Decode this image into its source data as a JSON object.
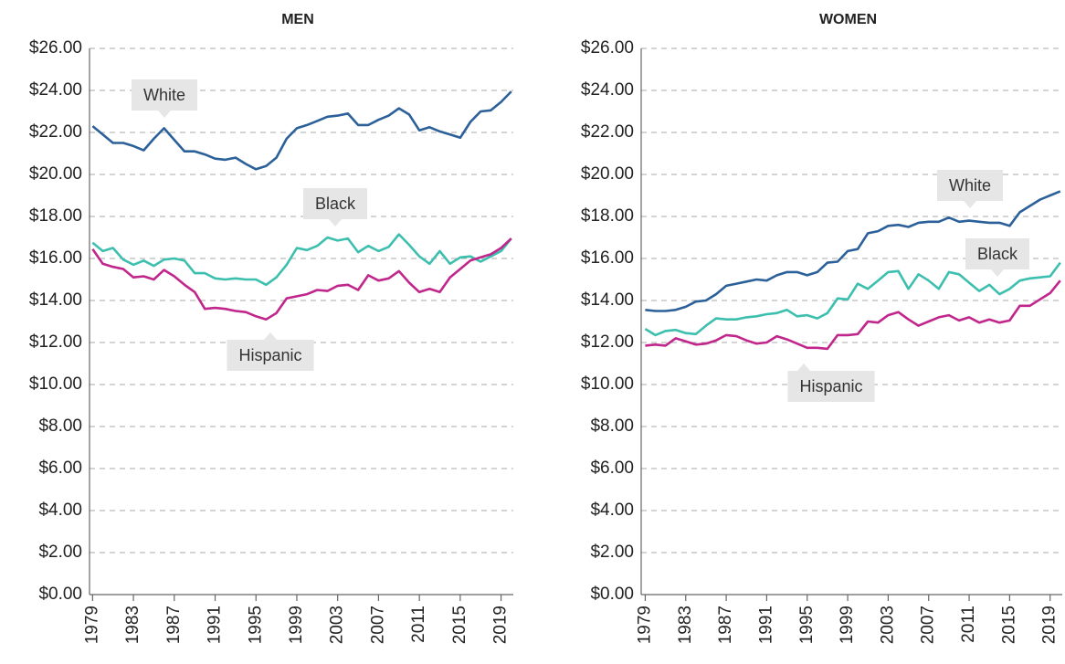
{
  "chart_data": [
    {
      "type": "line",
      "title": "MEN",
      "x": [
        1979,
        1980,
        1981,
        1982,
        1983,
        1984,
        1985,
        1986,
        1987,
        1988,
        1989,
        1990,
        1991,
        1992,
        1993,
        1994,
        1995,
        1996,
        1997,
        1998,
        1999,
        2000,
        2001,
        2002,
        2003,
        2004,
        2005,
        2006,
        2007,
        2008,
        2009,
        2010,
        2011,
        2012,
        2013,
        2014,
        2015,
        2016,
        2017,
        2018,
        2019,
        2020
      ],
      "series": [
        {
          "name": "White",
          "color": "#2b6099",
          "values": [
            22.3,
            21.9,
            21.5,
            21.5,
            21.35,
            21.15,
            21.7,
            22.2,
            21.65,
            21.1,
            21.1,
            20.95,
            20.75,
            20.7,
            20.8,
            20.5,
            20.25,
            20.4,
            20.8,
            21.7,
            22.2,
            22.35,
            22.55,
            22.75,
            22.8,
            22.9,
            22.35,
            22.35,
            22.6,
            22.8,
            23.15,
            22.85,
            22.1,
            22.25,
            22.05,
            21.9,
            21.75,
            22.5,
            23.0,
            23.05,
            23.45,
            23.95
          ]
        },
        {
          "name": "Black",
          "color": "#3cbfae",
          "values": [
            16.75,
            16.35,
            16.5,
            15.95,
            15.7,
            15.9,
            15.65,
            15.95,
            16.0,
            15.9,
            15.3,
            15.3,
            15.05,
            15.0,
            15.05,
            15.0,
            15.0,
            14.75,
            15.1,
            15.7,
            16.5,
            16.4,
            16.6,
            17.0,
            16.85,
            16.95,
            16.3,
            16.6,
            16.35,
            16.55,
            17.15,
            16.65,
            16.1,
            15.75,
            16.35,
            15.75,
            16.05,
            16.1,
            15.85,
            16.1,
            16.35,
            16.95
          ]
        },
        {
          "name": "Hispanic",
          "color": "#c0268b",
          "values": [
            16.45,
            15.75,
            15.6,
            15.5,
            15.1,
            15.15,
            15.0,
            15.45,
            15.15,
            14.75,
            14.4,
            13.6,
            13.65,
            13.6,
            13.5,
            13.45,
            13.25,
            13.1,
            13.4,
            14.1,
            14.2,
            14.3,
            14.5,
            14.45,
            14.7,
            14.75,
            14.5,
            15.2,
            14.95,
            15.05,
            15.4,
            14.85,
            14.4,
            14.55,
            14.4,
            15.1,
            15.5,
            15.9,
            16.05,
            16.2,
            16.5,
            16.95
          ]
        }
      ],
      "xlim": [
        1978.7,
        2020.2
      ],
      "ylim": [
        0,
        26
      ],
      "xticks": [
        1979,
        1983,
        1987,
        1991,
        1995,
        1999,
        2003,
        2007,
        2011,
        2015,
        2019
      ],
      "yticks": [
        {
          "value": 0,
          "label": "$0.00"
        },
        {
          "value": 2,
          "label": "$2.00"
        },
        {
          "value": 4,
          "label": "$4.00"
        },
        {
          "value": 6,
          "label": "$6.00"
        },
        {
          "value": 8,
          "label": "$8.00"
        },
        {
          "value": 10,
          "label": "$10.00"
        },
        {
          "value": 12,
          "label": "$12.00"
        },
        {
          "value": 14,
          "label": "$14.00"
        },
        {
          "value": 16,
          "label": "$16.00"
        },
        {
          "value": 18,
          "label": "$18.00"
        },
        {
          "value": 20,
          "label": "$20.00"
        },
        {
          "value": 22,
          "label": "$22.00"
        },
        {
          "value": 24,
          "label": "$24.00"
        },
        {
          "value": 26,
          "label": "$26.00"
        }
      ],
      "grid": true,
      "annotations": [
        "White",
        "Black",
        "Hispanic"
      ]
    },
    {
      "type": "line",
      "title": "WOMEN",
      "x": [
        1979,
        1980,
        1981,
        1982,
        1983,
        1984,
        1985,
        1986,
        1987,
        1988,
        1989,
        1990,
        1991,
        1992,
        1993,
        1994,
        1995,
        1996,
        1997,
        1998,
        1999,
        2000,
        2001,
        2002,
        2003,
        2004,
        2005,
        2006,
        2007,
        2008,
        2009,
        2010,
        2011,
        2012,
        2013,
        2014,
        2015,
        2016,
        2017,
        2018,
        2019,
        2020
      ],
      "series": [
        {
          "name": "White",
          "color": "#2b6099",
          "values": [
            13.55,
            13.5,
            13.5,
            13.55,
            13.7,
            13.95,
            14.0,
            14.3,
            14.7,
            14.8,
            14.9,
            15.0,
            14.95,
            15.2,
            15.35,
            15.35,
            15.2,
            15.35,
            15.8,
            15.85,
            16.35,
            16.45,
            17.2,
            17.3,
            17.55,
            17.6,
            17.5,
            17.7,
            17.75,
            17.75,
            17.95,
            17.75,
            17.8,
            17.75,
            17.7,
            17.7,
            17.55,
            18.2,
            18.5,
            18.8,
            19.0,
            19.2
          ]
        },
        {
          "name": "Black",
          "color": "#3cbfae",
          "values": [
            12.65,
            12.35,
            12.55,
            12.6,
            12.45,
            12.4,
            12.8,
            13.15,
            13.1,
            13.1,
            13.2,
            13.25,
            13.35,
            13.4,
            13.55,
            13.25,
            13.3,
            13.15,
            13.4,
            14.1,
            14.05,
            14.8,
            14.55,
            14.95,
            15.35,
            15.4,
            14.55,
            15.25,
            14.95,
            14.55,
            15.35,
            15.25,
            14.85,
            14.45,
            14.75,
            14.3,
            14.55,
            14.95,
            15.05,
            15.1,
            15.15,
            15.8
          ]
        },
        {
          "name": "Hispanic",
          "color": "#c0268b",
          "values": [
            11.85,
            11.9,
            11.85,
            12.2,
            12.05,
            11.9,
            11.95,
            12.1,
            12.35,
            12.3,
            12.1,
            11.95,
            12.0,
            12.3,
            12.15,
            11.95,
            11.75,
            11.75,
            11.7,
            12.35,
            12.35,
            12.4,
            13.0,
            12.95,
            13.3,
            13.45,
            13.1,
            12.8,
            13.0,
            13.2,
            13.3,
            13.05,
            13.2,
            12.95,
            13.1,
            12.95,
            13.05,
            13.75,
            13.75,
            14.05,
            14.35,
            14.95
          ]
        }
      ],
      "xlim": [
        1978.6,
        2020.2
      ],
      "ylim": [
        0,
        26
      ],
      "xticks": [
        1979,
        1983,
        1987,
        1991,
        1995,
        1999,
        2003,
        2007,
        2011,
        2015,
        2019
      ],
      "yticks": [
        {
          "value": 0,
          "label": "$0.00"
        },
        {
          "value": 2,
          "label": "$2.00"
        },
        {
          "value": 4,
          "label": "$4.00"
        },
        {
          "value": 6,
          "label": "$6.00"
        },
        {
          "value": 8,
          "label": "$8.00"
        },
        {
          "value": 10,
          "label": "$10.00"
        },
        {
          "value": 12,
          "label": "$12.00"
        },
        {
          "value": 14,
          "label": "$14.00"
        },
        {
          "value": 16,
          "label": "$16.00"
        },
        {
          "value": 18,
          "label": "$18.00"
        },
        {
          "value": 20,
          "label": "$20.00"
        },
        {
          "value": 22,
          "label": "$22.00"
        },
        {
          "value": 24,
          "label": "$24.00"
        },
        {
          "value": 26,
          "label": "$26.00"
        }
      ],
      "grid": true,
      "annotations": [
        "White",
        "Black",
        "Hispanic"
      ]
    }
  ]
}
